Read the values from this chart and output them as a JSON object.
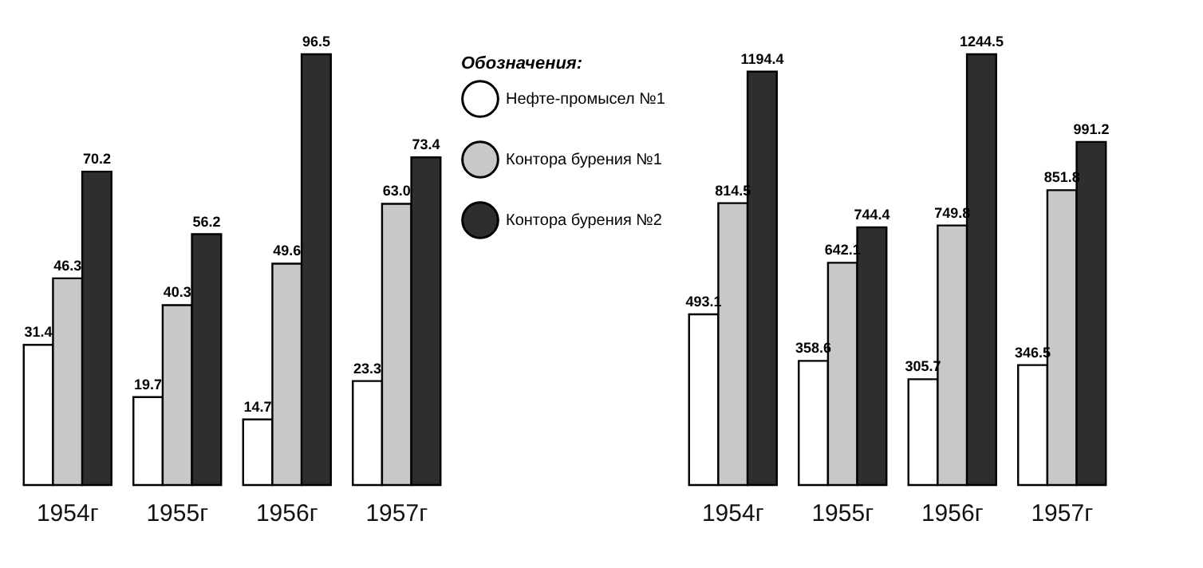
{
  "chart_data": [
    {
      "type": "bar",
      "categories": [
        "1954г",
        "1955г",
        "1956г",
        "1957г"
      ],
      "legend": "right",
      "legend_title": "Обозначения:",
      "series": [
        {
          "name": "Нефте-промысел №1",
          "color": "#ffffff",
          "values": [
            31.4,
            19.7,
            14.7,
            23.3
          ],
          "value_labels": [
            "31.4",
            "19.7",
            "14.7",
            "23.3"
          ]
        },
        {
          "name": "Контора бурения №1",
          "color": "#c8c8c8",
          "values": [
            46.3,
            40.3,
            49.6,
            63.0
          ],
          "value_labels": [
            "46.3",
            "40.3",
            "49.6",
            "63.0"
          ]
        },
        {
          "name": "Контора бурения №2",
          "color": "#2e2e2e",
          "values": [
            70.2,
            56.2,
            96.5,
            73.4
          ],
          "value_labels": [
            "70.2",
            "56.2",
            "96.5",
            "73.4"
          ]
        }
      ]
    },
    {
      "type": "bar",
      "categories": [
        "1954г",
        "1955г",
        "1956г",
        "1957г"
      ],
      "series": [
        {
          "color": "#ffffff",
          "values": [
            493.1,
            358.6,
            305.7,
            346.5
          ],
          "value_labels": [
            "493.1",
            "358.6",
            "305.7",
            "346.5"
          ]
        },
        {
          "color": "#c8c8c8",
          "values": [
            814.5,
            642.1,
            749.8,
            851.8
          ],
          "value_labels": [
            "814.5",
            "642.1",
            "749.8",
            "851.8"
          ]
        },
        {
          "color": "#2e2e2e",
          "values": [
            1194.4,
            744.4,
            1244.5,
            991.2
          ],
          "value_labels": [
            "1194.4",
            "744.4",
            "1244.5",
            "991.2"
          ]
        }
      ]
    }
  ]
}
